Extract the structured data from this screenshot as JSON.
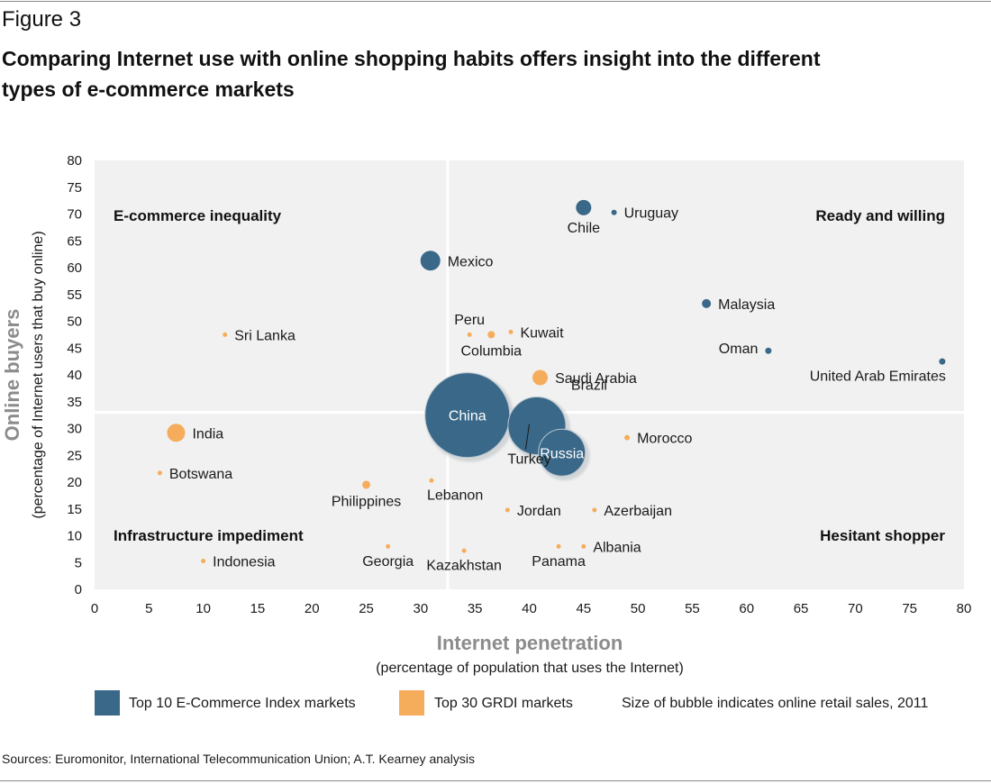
{
  "figure_label": "Figure 3",
  "title": "Comparing Internet use with online shopping habits offers insight into the different types of e-commerce markets",
  "legend": {
    "top10_label": "Top 10 E-Commerce Index markets",
    "top30_label": "Top 30 GRDI markets",
    "size_note": "Size of bubble indicates online retail sales, 2011"
  },
  "source": "Sources: Euromonitor, International Telecommunication Union; A.T. Kearney analysis",
  "colors": {
    "top10": "#3a6888",
    "top30": "#f5ad5c",
    "plot_bg": "#f1f1f1",
    "axis_title": "#8c8c8c"
  },
  "chart_data": {
    "type": "scatter",
    "xlim": [
      0,
      80
    ],
    "ylim": [
      0,
      80
    ],
    "x_ticks": [
      "0",
      "5",
      "10",
      "15",
      "20",
      "25",
      "30",
      "35",
      "40",
      "45",
      "50",
      "55",
      "60",
      "65",
      "70",
      "75",
      "80"
    ],
    "y_ticks": [
      "0",
      "5",
      "10",
      "15",
      "20",
      "25",
      "30",
      "35",
      "40",
      "45",
      "50",
      "55",
      "60",
      "65",
      "70",
      "75",
      "80"
    ],
    "xlabel": "Internet penetration",
    "xlabel_sub": "(percentage of population that uses the Internet)",
    "ylabel": "Online buyers",
    "ylabel_sub": "(percentage of Internet users that buy online)",
    "divider": {
      "x": 32.5,
      "y": 33
    },
    "quadrants": {
      "top_left": "E-commerce inequality",
      "top_right": "Ready and willing",
      "bottom_left": "Infrastructure impediment",
      "bottom_right": "Hesitant shopper"
    },
    "series": [
      {
        "name": "Top 10 E-Commerce Index markets",
        "group": "top10",
        "points": [
          {
            "label": "China",
            "x": 34.3,
            "y": 32.5,
            "r": 47,
            "label_pos": "inside"
          },
          {
            "label": "Brazil",
            "x": 40.7,
            "y": 30.5,
            "r": 32,
            "label_pos": "brazil"
          },
          {
            "label": "Russia",
            "x": 43.0,
            "y": 25.5,
            "r": 26,
            "label_pos": "inside"
          },
          {
            "label": "Mexico",
            "x": 30.9,
            "y": 61.3,
            "r": 11,
            "label_pos": "right"
          },
          {
            "label": "Chile",
            "x": 45.0,
            "y": 71.2,
            "r": 8.5,
            "label_pos": "below"
          },
          {
            "label": "Uruguay",
            "x": 47.8,
            "y": 70.3,
            "r": 3,
            "label_pos": "right"
          },
          {
            "label": "Malaysia",
            "x": 56.3,
            "y": 53.3,
            "r": 5,
            "label_pos": "right"
          },
          {
            "label": "Oman",
            "x": 62.0,
            "y": 44.5,
            "r": 3.5,
            "label_pos": "left"
          },
          {
            "label": "United Arab Emirates",
            "x": 78.0,
            "y": 42.5,
            "r": 3.5,
            "label_pos": "below-left"
          }
        ]
      },
      {
        "name": "Top 30 GRDI markets",
        "group": "top30",
        "points": [
          {
            "label": "India",
            "x": 7.5,
            "y": 29.2,
            "r": 10,
            "label_pos": "right"
          },
          {
            "label": "Saudi Arabia",
            "x": 41.0,
            "y": 39.5,
            "r": 8.5,
            "label_pos": "right"
          },
          {
            "label": "Botswana",
            "x": 6.0,
            "y": 21.7,
            "r": 2.5,
            "label_pos": "right"
          },
          {
            "label": "Sri Lanka",
            "x": 12.0,
            "y": 47.5,
            "r": 2.5,
            "label_pos": "right"
          },
          {
            "label": "Philippines",
            "x": 25.0,
            "y": 19.5,
            "r": 4.5,
            "label_pos": "below"
          },
          {
            "label": "Lebanon",
            "x": 31.0,
            "y": 20.3,
            "r": 2.5,
            "label_pos": "below-right"
          },
          {
            "label": "Peru",
            "x": 34.5,
            "y": 47.5,
            "r": 2.5,
            "label_pos": "above"
          },
          {
            "label": "Columbia",
            "x": 36.5,
            "y": 47.5,
            "r": 4,
            "label_pos": "below"
          },
          {
            "label": "Kuwait",
            "x": 38.3,
            "y": 48.0,
            "r": 2.5,
            "label_pos": "right"
          },
          {
            "label": "Morocco",
            "x": 49.0,
            "y": 28.3,
            "r": 3,
            "label_pos": "right"
          },
          {
            "label": "Jordan",
            "x": 38.0,
            "y": 14.8,
            "r": 2.5,
            "label_pos": "right"
          },
          {
            "label": "Azerbaijan",
            "x": 46.0,
            "y": 14.8,
            "r": 2.5,
            "label_pos": "right"
          },
          {
            "label": "Indonesia",
            "x": 10.0,
            "y": 5.3,
            "r": 2.5,
            "label_pos": "right"
          },
          {
            "label": "Georgia",
            "x": 27.0,
            "y": 8.0,
            "r": 2.5,
            "label_pos": "below"
          },
          {
            "label": "Kazakhstan",
            "x": 34.0,
            "y": 7.2,
            "r": 2.5,
            "label_pos": "below"
          },
          {
            "label": "Panama",
            "x": 42.7,
            "y": 8.0,
            "r": 2.5,
            "label_pos": "below"
          },
          {
            "label": "Albania",
            "x": 45.0,
            "y": 8.0,
            "r": 2.5,
            "label_pos": "right"
          },
          {
            "label": "Turkey",
            "x": 40.0,
            "y": 30.5,
            "r": 0,
            "label_pos": "turkey"
          }
        ]
      }
    ]
  }
}
